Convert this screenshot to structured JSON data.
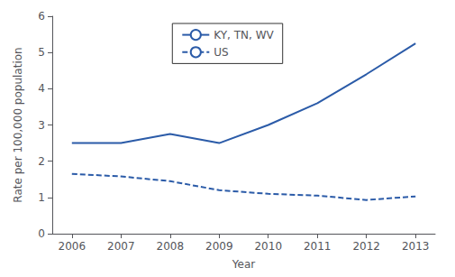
{
  "chart_data": {
    "type": "line",
    "xlabel": "Year",
    "ylabel": "Rate per 100,000 population",
    "x": [
      2006,
      2007,
      2008,
      2009,
      2010,
      2011,
      2012,
      2013
    ],
    "series": [
      {
        "name": "KY, TN, WV",
        "color": "#2B5BA8",
        "line_style": "solid",
        "values": [
          2.5,
          2.5,
          2.75,
          2.5,
          3.0,
          3.6,
          4.4,
          5.25
        ]
      },
      {
        "name": "US",
        "color": "#2B5BA8",
        "line_style": "dashed",
        "values": [
          1.65,
          1.58,
          1.45,
          1.2,
          1.1,
          1.05,
          0.93,
          1.03
        ]
      }
    ],
    "xlim": [
      2005.6,
      2013.4
    ],
    "xticks": [
      2006,
      2007,
      2008,
      2009,
      2010,
      2011,
      2012,
      2013
    ],
    "ylim": [
      0,
      6
    ],
    "yticks": [
      0,
      1,
      2,
      3,
      4,
      5,
      6
    ],
    "grid": false,
    "legend": "upper center"
  }
}
